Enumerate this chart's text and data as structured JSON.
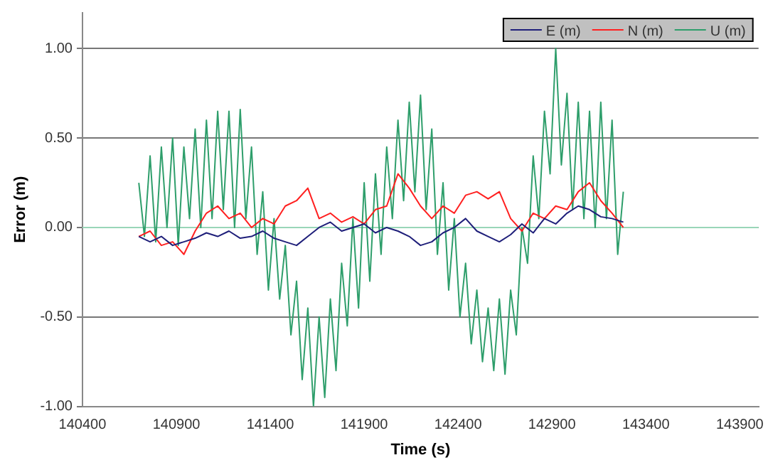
{
  "chart_data": {
    "type": "line",
    "xlabel": "Time (s)",
    "ylabel": "Error (m)",
    "xlim": [
      140400,
      144000
    ],
    "xticks": [
      140400,
      140900,
      141400,
      141900,
      142400,
      142900,
      143400,
      143900
    ],
    "ylim": [
      -1,
      1.2
    ],
    "yticks": [
      {
        "value": -1,
        "label": "-1.00"
      },
      {
        "value": -0.5,
        "label": "-0.50"
      },
      {
        "value": 0,
        "label": "0.00"
      },
      {
        "value": 0.5,
        "label": "0.50"
      },
      {
        "value": 1,
        "label": "1.00"
      }
    ],
    "grid": "y",
    "legend": "top right",
    "marker": "none",
    "line_style": "solid",
    "ref_lines": [
      {
        "axis": "y",
        "value": 0,
        "color": "#99d6b8"
      }
    ],
    "series": [
      {
        "name": "E (m)",
        "color": "#1f1f7a",
        "x": [
          140700,
          140760,
          140820,
          140880,
          140940,
          141000,
          141060,
          141120,
          141180,
          141240,
          141300,
          141360,
          141420,
          141480,
          141540,
          141600,
          141660,
          141720,
          141780,
          141840,
          141900,
          141960,
          142020,
          142080,
          142140,
          142200,
          142260,
          142320,
          142380,
          142440,
          142500,
          142560,
          142620,
          142680,
          142740,
          142800,
          142860,
          142920,
          142980,
          143040,
          143100,
          143160,
          143220,
          143280
        ],
        "values": [
          -0.05,
          -0.08,
          -0.05,
          -0.1,
          -0.08,
          -0.06,
          -0.03,
          -0.05,
          -0.02,
          -0.06,
          -0.05,
          -0.02,
          -0.06,
          -0.08,
          -0.1,
          -0.05,
          0.0,
          0.03,
          -0.02,
          0.0,
          0.02,
          -0.03,
          0.0,
          -0.02,
          -0.05,
          -0.1,
          -0.08,
          -0.03,
          0.0,
          0.05,
          -0.02,
          -0.05,
          -0.08,
          -0.04,
          0.02,
          -0.03,
          0.05,
          0.02,
          0.08,
          0.12,
          0.1,
          0.06,
          0.05,
          0.03
        ]
      },
      {
        "name": "N (m)",
        "color": "#ff2020",
        "x": [
          140700,
          140760,
          140820,
          140880,
          140940,
          141000,
          141060,
          141120,
          141180,
          141240,
          141300,
          141360,
          141420,
          141480,
          141540,
          141600,
          141660,
          141720,
          141780,
          141840,
          141900,
          141960,
          142020,
          142080,
          142140,
          142200,
          142260,
          142320,
          142380,
          142440,
          142500,
          142560,
          142620,
          142680,
          142740,
          142800,
          142860,
          142920,
          142980,
          143040,
          143100,
          143160,
          143220,
          143280
        ],
        "values": [
          -0.05,
          -0.02,
          -0.1,
          -0.08,
          -0.15,
          -0.02,
          0.08,
          0.12,
          0.05,
          0.08,
          0.0,
          0.05,
          0.02,
          0.12,
          0.15,
          0.22,
          0.05,
          0.08,
          0.03,
          0.06,
          0.02,
          0.1,
          0.12,
          0.3,
          0.22,
          0.12,
          0.05,
          0.12,
          0.08,
          0.18,
          0.2,
          0.16,
          0.2,
          0.05,
          -0.02,
          0.08,
          0.05,
          0.12,
          0.1,
          0.2,
          0.25,
          0.15,
          0.08,
          0.0
        ]
      },
      {
        "name": "U (m)",
        "color": "#2e9e6b",
        "x": [
          140700,
          140730,
          140760,
          140790,
          140820,
          140850,
          140880,
          140910,
          140940,
          140970,
          141000,
          141030,
          141060,
          141090,
          141120,
          141150,
          141180,
          141210,
          141240,
          141270,
          141300,
          141330,
          141360,
          141390,
          141420,
          141450,
          141480,
          141510,
          141540,
          141570,
          141600,
          141630,
          141660,
          141690,
          141720,
          141750,
          141780,
          141810,
          141840,
          141870,
          141900,
          141930,
          141960,
          141990,
          142020,
          142050,
          142080,
          142110,
          142140,
          142170,
          142200,
          142230,
          142260,
          142290,
          142320,
          142350,
          142380,
          142410,
          142440,
          142470,
          142500,
          142530,
          142560,
          142590,
          142620,
          142650,
          142680,
          142710,
          142740,
          142770,
          142800,
          142830,
          142860,
          142890,
          142920,
          142950,
          142980,
          143010,
          143040,
          143070,
          143100,
          143130,
          143160,
          143190,
          143220,
          143250,
          143280
        ],
        "values": [
          0.25,
          -0.05,
          0.4,
          -0.08,
          0.45,
          0.0,
          0.5,
          -0.1,
          0.45,
          0.05,
          0.55,
          0.0,
          0.6,
          0.05,
          0.65,
          0.1,
          0.65,
          0.0,
          0.66,
          0.05,
          0.45,
          -0.15,
          0.2,
          -0.35,
          0.05,
          -0.4,
          -0.1,
          -0.6,
          -0.3,
          -0.85,
          -0.45,
          -1.0,
          -0.5,
          -0.95,
          -0.4,
          -0.8,
          -0.2,
          -0.55,
          0.05,
          -0.45,
          0.25,
          -0.3,
          0.3,
          -0.15,
          0.45,
          0.05,
          0.6,
          0.15,
          0.7,
          0.2,
          0.74,
          0.1,
          0.55,
          -0.15,
          0.25,
          -0.35,
          0.05,
          -0.5,
          -0.2,
          -0.65,
          -0.35,
          -0.75,
          -0.45,
          -0.8,
          -0.4,
          -0.82,
          -0.35,
          -0.6,
          0.0,
          -0.2,
          0.4,
          0.05,
          0.65,
          0.3,
          1.0,
          0.35,
          0.75,
          0.1,
          0.7,
          0.05,
          0.65,
          0.0,
          0.7,
          0.05,
          0.6,
          -0.15,
          0.2
        ]
      }
    ]
  }
}
